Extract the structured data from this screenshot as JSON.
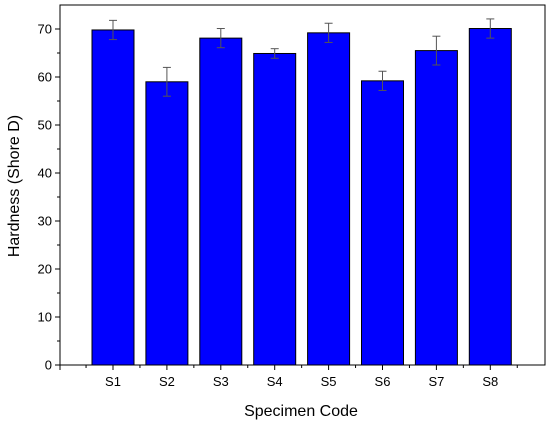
{
  "chart_data": {
    "type": "bar",
    "title": "",
    "xlabel": "Specimen Code",
    "ylabel": "Hardness (Shore D)",
    "categories": [
      "S1",
      "S2",
      "S3",
      "S4",
      "S5",
      "S6",
      "S7",
      "S8"
    ],
    "values": [
      69.8,
      59.0,
      68.1,
      64.9,
      69.2,
      59.2,
      65.5,
      70.1
    ],
    "errors": [
      2.0,
      3.0,
      2.0,
      1.0,
      2.0,
      2.0,
      3.0,
      2.0
    ],
    "ylim": [
      0,
      75
    ],
    "yticks": [
      0,
      10,
      20,
      30,
      40,
      50,
      60,
      70
    ],
    "ytick_labels": [
      "0",
      "10",
      "20",
      "30",
      "40",
      "50",
      "60",
      "70"
    ],
    "bar_color": "#0000ff",
    "grid": false,
    "legend": "none"
  }
}
